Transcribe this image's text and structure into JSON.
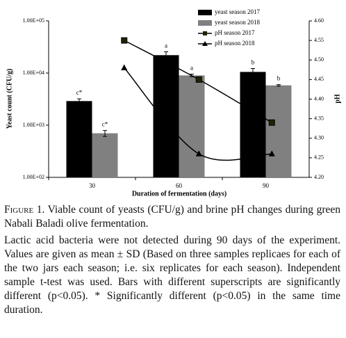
{
  "chart_data": {
    "type": "combo",
    "x_label": "Duration of fermentation (days)",
    "y_label": "Yeast count (CFU/g)",
    "y2_label": "pH",
    "categories": [
      "30",
      "60",
      "90"
    ],
    "ylim": [
      100,
      100000
    ],
    "log_scale": true,
    "yticks": [
      {
        "value": 100,
        "label": "1.00E+02"
      },
      {
        "value": 1000,
        "label": "1.00E+03"
      },
      {
        "value": 10000,
        "label": "1.00E+04"
      },
      {
        "value": 100000,
        "label": "1.00E+05"
      }
    ],
    "y2lim": [
      4.2,
      4.6
    ],
    "y2ticks": [
      {
        "value": 4.2,
        "label": "4.20"
      },
      {
        "value": 4.25,
        "label": "4.25"
      },
      {
        "value": 4.3,
        "label": "4.30"
      },
      {
        "value": 4.35,
        "label": "4.35"
      },
      {
        "value": 4.4,
        "label": "4.40"
      },
      {
        "value": 4.45,
        "label": "4.45"
      },
      {
        "value": 4.5,
        "label": "4.50"
      },
      {
        "value": 4.55,
        "label": "4.55"
      },
      {
        "value": 4.6,
        "label": "4.60"
      }
    ],
    "legend": "top-right",
    "series": [
      {
        "name": "yeast season 2017",
        "type": "bar",
        "color": "#000000",
        "values": [
          2900,
          22000,
          10500
        ],
        "errors": [
          300,
          3500,
          1700
        ],
        "labels": [
          "c*",
          "a",
          "b"
        ]
      },
      {
        "name": "yeast season 2018",
        "type": "bar",
        "color": "#808080",
        "values": [
          700,
          9000,
          5800
        ],
        "errors": [
          90,
          500,
          200
        ],
        "labels": [
          "c*",
          "a",
          "b"
        ]
      },
      {
        "name": "pH season 2017",
        "type": "line",
        "axis": "y2",
        "marker": "square",
        "color": "#000000",
        "values": [
          4.55,
          4.45,
          4.34
        ]
      },
      {
        "name": "pH season 2018",
        "type": "line",
        "axis": "y2",
        "marker": "triangle",
        "color": "#000000",
        "values": [
          4.48,
          4.26,
          4.26
        ]
      }
    ]
  },
  "caption": {
    "label": "Figure 1.",
    "title": "Viable count of yeasts (CFU/g) and brine pH changes during green Nabali Baladi olive fermentation.",
    "note": "Lactic acid bacteria were not detected during 90 days of the experiment. Values are given as mean ± SD (Based on three samples replicaes for each of the two jars each season; i.e. six replicates for each season). Independent sample t-test was used. Bars with different superscripts are significantly different (p<0.05). * Significantly different (p<0.05) in the same time duration."
  }
}
